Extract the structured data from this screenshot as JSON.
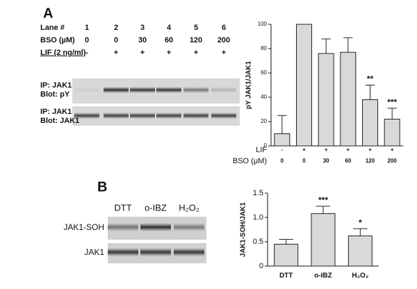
{
  "panel_a": {
    "label": "A",
    "lane_header": "Lane #",
    "lanes": [
      "1",
      "2",
      "3",
      "4",
      "5",
      "6"
    ],
    "bso_header": "BSO (µM)",
    "bso": [
      "0",
      "0",
      "30",
      "60",
      "120",
      "200"
    ],
    "lif_header": "LIF (2 ng/ml)",
    "lif": [
      "-",
      "+",
      "+",
      "+",
      "+",
      "+"
    ],
    "blot_labels": [
      [
        "IP: JAK1",
        "Blot: pY"
      ],
      [
        "IP: JAK1",
        "Blot: JAK1"
      ]
    ]
  },
  "panel_b": {
    "label": "B",
    "lanes": [
      "DTT",
      "o-IBZ",
      "H₂O₂"
    ],
    "blot_labels": [
      "JAK1-SOH",
      "JAK1"
    ]
  },
  "chart_data": [
    {
      "type": "bar",
      "ylabel": "pY JAK1/JAK1",
      "row_names": [
        "LIF",
        "BSO (µM)"
      ],
      "lif": [
        "-",
        "+",
        "+",
        "+",
        "+",
        "+"
      ],
      "categories": [
        "0",
        "0",
        "30",
        "60",
        "120",
        "200"
      ],
      "values": [
        10,
        100,
        76,
        77,
        38,
        22
      ],
      "errors": [
        15,
        0,
        12,
        12,
        12,
        9
      ],
      "annotations": [
        {
          "index": 4,
          "text": "**"
        },
        {
          "index": 5,
          "text": "***"
        }
      ],
      "color": "#d9d9d9",
      "ylim": [
        0,
        100
      ],
      "yticks": [
        0,
        20,
        40,
        60,
        80,
        100
      ]
    },
    {
      "type": "bar",
      "ylabel": "JAK1-SOH/JAK1",
      "categories": [
        "DTT",
        "o-IBZ",
        "H₂O₂"
      ],
      "values": [
        0.45,
        1.08,
        0.62
      ],
      "errors": [
        0.1,
        0.15,
        0.15
      ],
      "annotations": [
        {
          "index": 1,
          "text": "***"
        },
        {
          "index": 2,
          "text": "*"
        }
      ],
      "color": "#d9d9d9",
      "ylim": [
        0,
        1.5
      ],
      "yticks": [
        0,
        0.5,
        {
          "value": 1,
          "label": "1.0"
        },
        1.5
      ]
    }
  ]
}
